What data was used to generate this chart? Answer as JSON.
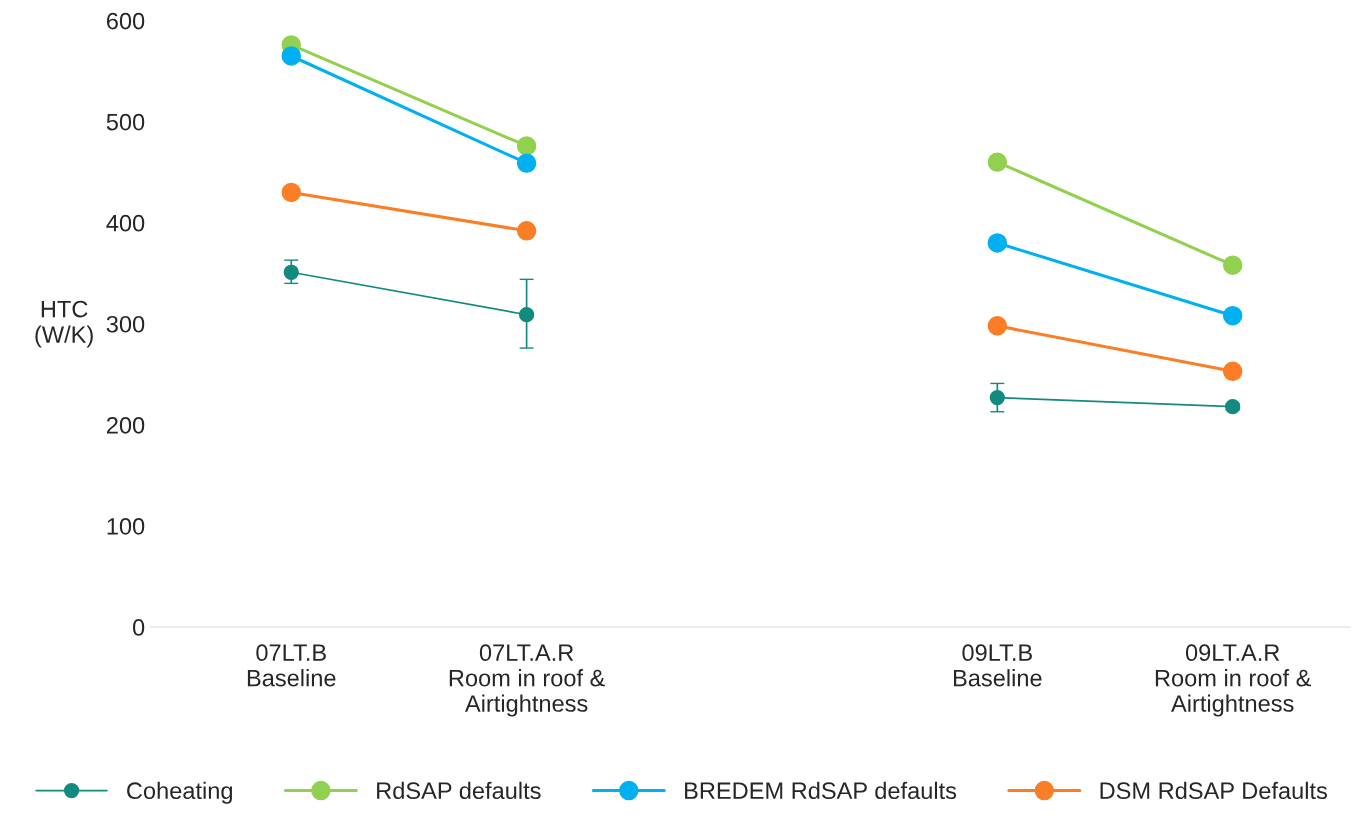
{
  "chart_data": {
    "type": "line",
    "ylabel": "HTC\n(W/K)",
    "categories": [
      "07LT.B\nBaseline",
      "07LT.A.R\nRoom in roof &\nAirtightness",
      null,
      "09LT.B\nBaseline",
      "09LT.A.R\nRoom in roof &\nAirtightness"
    ],
    "series": [
      {
        "name": "Coheating",
        "color": "#138a80",
        "values": [
          351,
          309,
          null,
          227,
          218
        ],
        "errors": [
          [
            340,
            363
          ],
          [
            276,
            344
          ],
          null,
          [
            213,
            241
          ],
          [
            215,
            221
          ]
        ]
      },
      {
        "name": "RdSAP defaults",
        "color": "#92d050",
        "values": [
          576,
          476,
          null,
          460,
          358
        ]
      },
      {
        "name": "BREDEM RdSAP defaults",
        "color": "#00b0f0",
        "values": [
          565,
          459,
          null,
          380,
          308
        ]
      },
      {
        "name": "DSM RdSAP Defaults",
        "color": "#fb7d25",
        "values": [
          430,
          392,
          null,
          298,
          253
        ]
      }
    ],
    "ylim": [
      0,
      600
    ],
    "yticks": [
      0,
      100,
      200,
      300,
      400,
      500,
      600
    ],
    "grid": false,
    "legend": "bottom",
    "marker": "circle"
  }
}
